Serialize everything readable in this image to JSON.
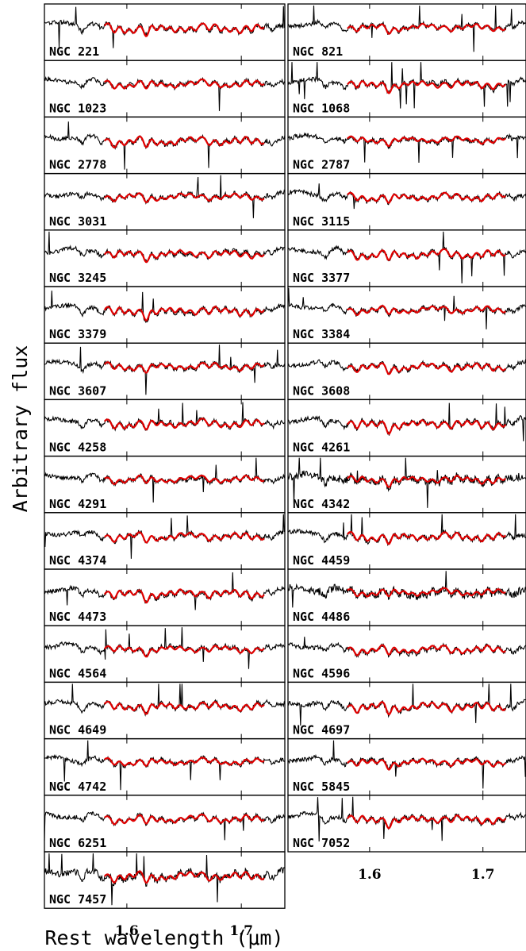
{
  "chart_data": {
    "type": "line",
    "ylabel": "Arbitrary flux",
    "xlabel": "Rest wavelength (μm)",
    "xlim": [
      1.528,
      1.738
    ],
    "xticks": [
      1.6,
      1.7
    ],
    "xtick_labels": [
      "1.6",
      "1.7"
    ],
    "series_colors": {
      "observed": "#000000",
      "model": "#e00000"
    },
    "fit_range": [
      1.58,
      1.72
    ],
    "panels": [
      {
        "label": "NGC 221"
      },
      {
        "label": "NGC 1023"
      },
      {
        "label": "NGC 2778"
      },
      {
        "label": "NGC 3031"
      },
      {
        "label": "NGC 3245"
      },
      {
        "label": "NGC 3379"
      },
      {
        "label": "NGC 3607"
      },
      {
        "label": "NGC 4258"
      },
      {
        "label": "NGC 4291"
      },
      {
        "label": "NGC 4374"
      },
      {
        "label": "NGC 4473"
      },
      {
        "label": "NGC 4564"
      },
      {
        "label": "NGC 4649"
      },
      {
        "label": "NGC 4742"
      },
      {
        "label": "NGC 6251"
      },
      {
        "label": "NGC 7457"
      },
      {
        "label": "NGC 821"
      },
      {
        "label": "NGC 1068"
      },
      {
        "label": "NGC 2787"
      },
      {
        "label": "NGC 3115"
      },
      {
        "label": "NGC 3377"
      },
      {
        "label": "NGC 3384"
      },
      {
        "label": "NGC 3608"
      },
      {
        "label": "NGC 4261"
      },
      {
        "label": "NGC 4342"
      },
      {
        "label": "NGC 4459"
      },
      {
        "label": "NGC 4486"
      },
      {
        "label": "NGC 4596"
      },
      {
        "label": "NGC 4697"
      },
      {
        "label": "NGC 5845"
      },
      {
        "label": "NGC 7052"
      }
    ]
  }
}
